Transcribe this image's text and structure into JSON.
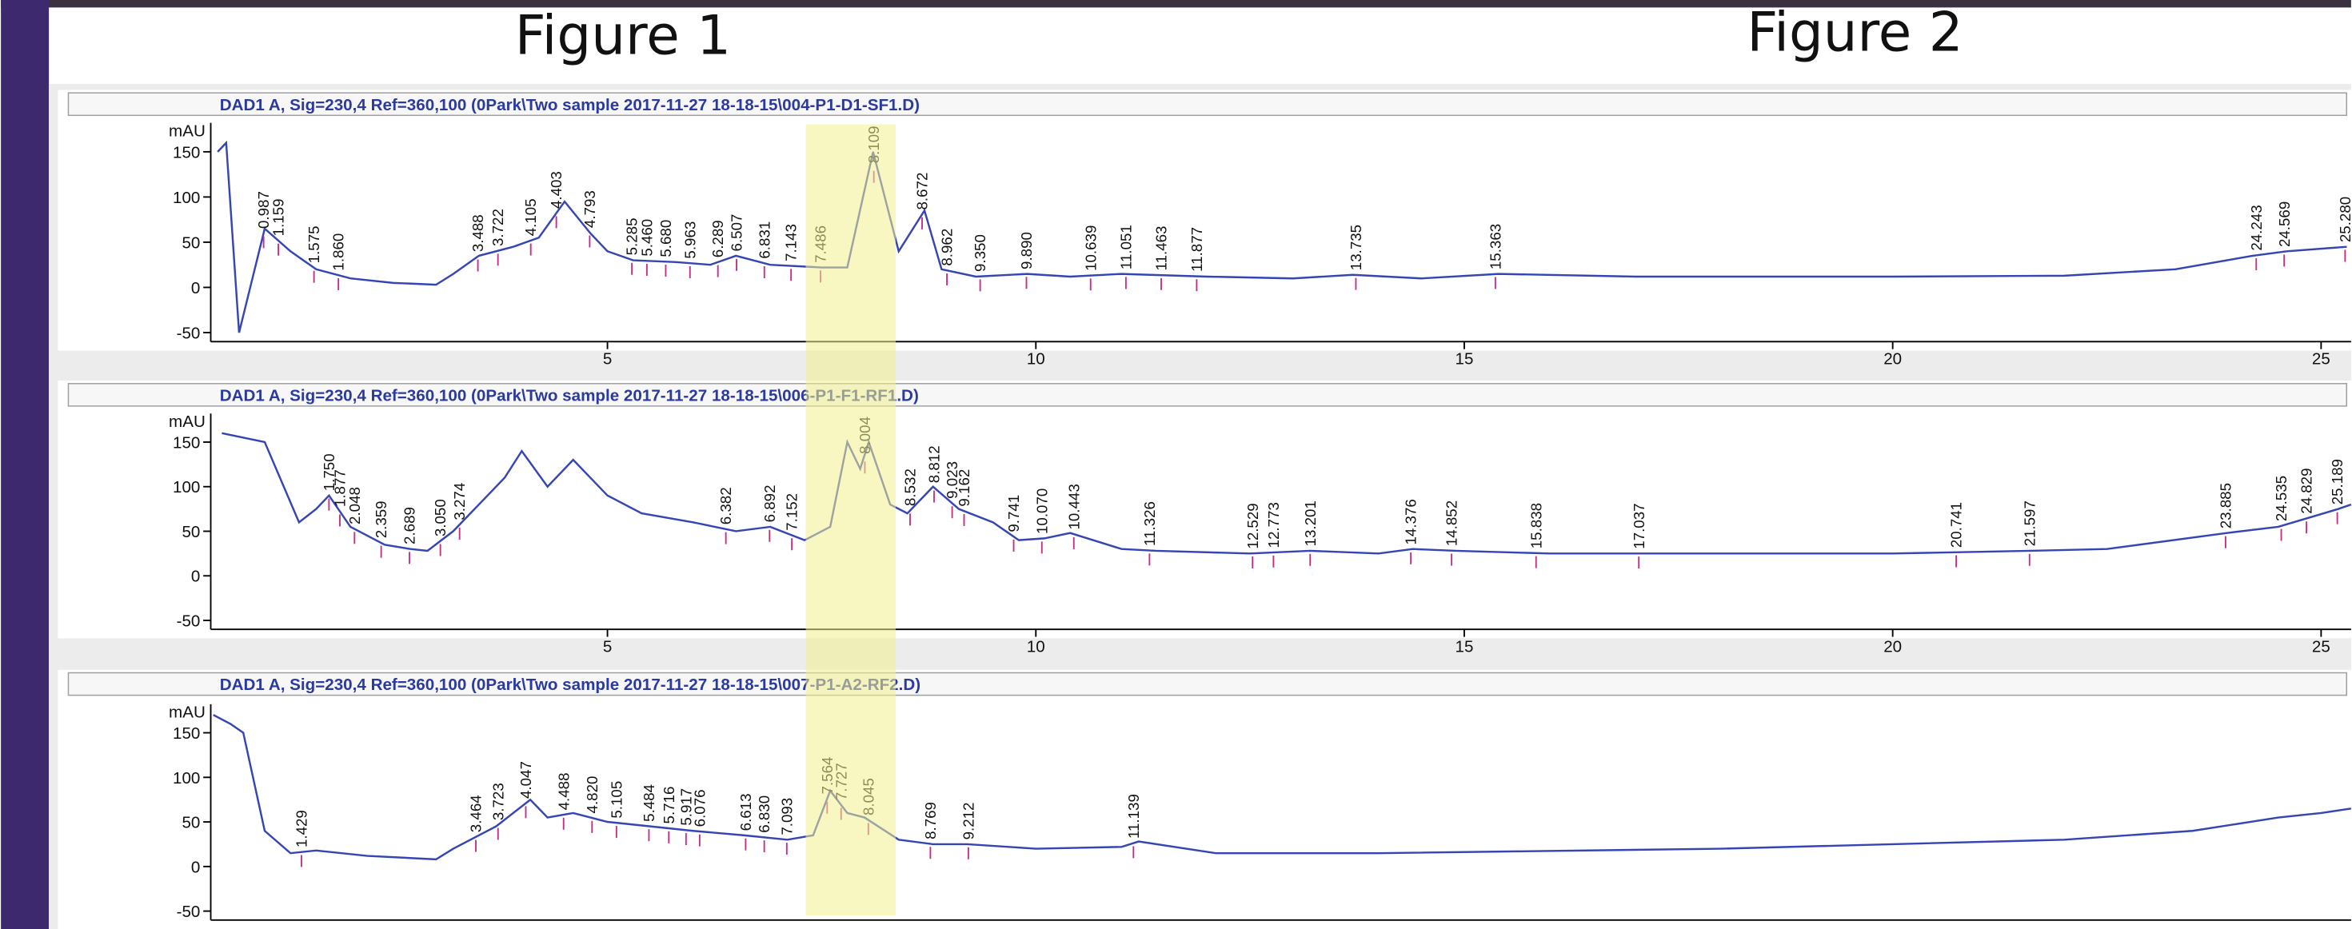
{
  "headings": [
    "Figure 1",
    "Figure 2"
  ],
  "chart_data": [
    {
      "type": "line",
      "title": "DAD1 A, Sig=230,4 Ref=360,100 (0Park\\Two sample 2017-11-27 18-18-15\\004-P1-D1-SF1.D)",
      "y_label": "mAU",
      "color": "#3546b4",
      "xlim": [
        0.37,
        25.35
      ],
      "ylim": [
        -60,
        182
      ],
      "xticks": [
        5,
        10,
        15,
        20,
        25
      ],
      "yticks": [
        -50,
        0,
        50,
        100,
        150
      ],
      "x": [
        0.45,
        0.55,
        0.7,
        1.0,
        1.3,
        1.6,
        2.0,
        2.5,
        3.0,
        3.2,
        3.5,
        3.9,
        4.2,
        4.5,
        4.8,
        5.0,
        5.3,
        5.8,
        6.2,
        6.5,
        6.9,
        7.5,
        7.8,
        8.1,
        8.4,
        8.7,
        8.9,
        9.3,
        9.9,
        10.4,
        11.0,
        12.0,
        13.0,
        13.7,
        14.5,
        15.4,
        17.0,
        20.0,
        22.0,
        23.3,
        24.2,
        24.6,
        25.3
      ],
      "values": [
        150,
        160,
        -50,
        65,
        40,
        20,
        10,
        5,
        3,
        15,
        35,
        45,
        55,
        95,
        60,
        40,
        30,
        28,
        25,
        35,
        25,
        22,
        22,
        150,
        40,
        85,
        20,
        12,
        15,
        12,
        15,
        12,
        10,
        14,
        10,
        15,
        12,
        12,
        13,
        20,
        35,
        40,
        45
      ],
      "annotations": [
        {
          "x": 0.987,
          "label": "0.987"
        },
        {
          "x": 1.159,
          "label": "1.159"
        },
        {
          "x": 1.575,
          "label": "1.575"
        },
        {
          "x": 1.86,
          "label": "1.860"
        },
        {
          "x": 3.488,
          "label": "3.488"
        },
        {
          "x": 3.722,
          "label": "3.722"
        },
        {
          "x": 4.105,
          "label": "4.105"
        },
        {
          "x": 4.403,
          "label": "4.403"
        },
        {
          "x": 4.793,
          "label": "4.793"
        },
        {
          "x": 5.285,
          "label": "5.285"
        },
        {
          "x": 5.46,
          "label": "5.460"
        },
        {
          "x": 5.68,
          "label": "5.680"
        },
        {
          "x": 5.963,
          "label": "5.963"
        },
        {
          "x": 6.289,
          "label": "6.289"
        },
        {
          "x": 6.507,
          "label": "6.507"
        },
        {
          "x": 6.831,
          "label": "6.831"
        },
        {
          "x": 7.143,
          "label": "7.143"
        },
        {
          "x": 7.486,
          "label": "7.486"
        },
        {
          "x": 8.109,
          "label": "8.109"
        },
        {
          "x": 8.672,
          "label": "8.672"
        },
        {
          "x": 8.962,
          "label": "8.962"
        },
        {
          "x": 9.35,
          "label": "9.350"
        },
        {
          "x": 9.89,
          "label": "9.890"
        },
        {
          "x": 10.639,
          "label": "10.639"
        },
        {
          "x": 11.051,
          "label": "11.051"
        },
        {
          "x": 11.463,
          "label": "11.463"
        },
        {
          "x": 11.877,
          "label": "11.877"
        },
        {
          "x": 13.735,
          "label": "13.735"
        },
        {
          "x": 15.363,
          "label": "15.363"
        },
        {
          "x": 24.243,
          "label": "24.243"
        },
        {
          "x": 24.569,
          "label": "24.569"
        },
        {
          "x": 25.28,
          "label": "25.280"
        }
      ]
    },
    {
      "type": "line",
      "title": "DAD1 A, Sig=230,4 Ref=360,100 (0Park\\Two sample 2017-11-27 18-18-15\\006-P1-F1-RF1.D)",
      "y_label": "mAU",
      "color": "#3546b4",
      "xlim": [
        0.37,
        25.35
      ],
      "ylim": [
        -60,
        182
      ],
      "xticks": [
        5,
        10,
        15,
        20,
        25
      ],
      "yticks": [
        -50,
        0,
        50,
        100,
        150
      ],
      "x": [
        0.5,
        1.0,
        1.4,
        1.6,
        1.75,
        2.0,
        2.4,
        2.7,
        2.9,
        3.2,
        3.5,
        3.8,
        4.0,
        4.3,
        4.6,
        5.0,
        5.4,
        6.0,
        6.5,
        6.9,
        7.3,
        7.6,
        7.8,
        7.95,
        8.05,
        8.3,
        8.5,
        8.8,
        9.1,
        9.5,
        9.8,
        10.1,
        10.4,
        11.0,
        11.4,
        12.5,
        13.2,
        14.0,
        14.4,
        14.9,
        16.0,
        17.0,
        20.0,
        21.6,
        22.5,
        23.9,
        24.5,
        25.2,
        25.35
      ],
      "values": [
        160,
        150,
        60,
        75,
        90,
        55,
        35,
        30,
        28,
        50,
        80,
        110,
        140,
        100,
        130,
        90,
        70,
        60,
        50,
        55,
        40,
        55,
        150,
        120,
        150,
        80,
        70,
        100,
        75,
        60,
        40,
        42,
        48,
        30,
        28,
        25,
        28,
        25,
        30,
        28,
        25,
        25,
        25,
        28,
        30,
        48,
        55,
        75,
        80
      ],
      "annotations": [
        {
          "x": 1.75,
          "label": "1.750"
        },
        {
          "x": 1.877,
          "label": "1.877"
        },
        {
          "x": 2.048,
          "label": "2.048"
        },
        {
          "x": 2.359,
          "label": "2.359"
        },
        {
          "x": 2.689,
          "label": "2.689"
        },
        {
          "x": 3.05,
          "label": "3.050"
        },
        {
          "x": 3.274,
          "label": "3.274"
        },
        {
          "x": 6.382,
          "label": "6.382"
        },
        {
          "x": 6.892,
          "label": "6.892"
        },
        {
          "x": 7.152,
          "label": "7.152"
        },
        {
          "x": 8.004,
          "label": "8.004"
        },
        {
          "x": 8.532,
          "label": "8.532"
        },
        {
          "x": 8.812,
          "label": "8.812"
        },
        {
          "x": 9.023,
          "label": "9.023"
        },
        {
          "x": 9.162,
          "label": "9.162"
        },
        {
          "x": 9.741,
          "label": "9.741"
        },
        {
          "x": 10.07,
          "label": "10.070"
        },
        {
          "x": 10.443,
          "label": "10.443"
        },
        {
          "x": 11.326,
          "label": "11.326"
        },
        {
          "x": 12.529,
          "label": "12.529"
        },
        {
          "x": 12.773,
          "label": "12.773"
        },
        {
          "x": 13.201,
          "label": "13.201"
        },
        {
          "x": 14.376,
          "label": "14.376"
        },
        {
          "x": 14.852,
          "label": "14.852"
        },
        {
          "x": 15.838,
          "label": "15.838"
        },
        {
          "x": 17.037,
          "label": "17.037"
        },
        {
          "x": 20.741,
          "label": "20.741"
        },
        {
          "x": 21.597,
          "label": "21.597"
        },
        {
          "x": 23.885,
          "label": "23.885"
        },
        {
          "x": 24.535,
          "label": "24.535"
        },
        {
          "x": 24.829,
          "label": "24.829"
        },
        {
          "x": 25.189,
          "label": "25.189"
        }
      ]
    },
    {
      "type": "line",
      "title": "DAD1 A, Sig=230,4 Ref=360,100 (0Park\\Two sample 2017-11-27 18-18-15\\007-P1-A2-RF2.D)",
      "y_label": "mAU",
      "color": "#3546b4",
      "xlim": [
        0.37,
        25.35
      ],
      "ylim": [
        -60,
        182
      ],
      "yticks": [
        -50,
        0,
        50,
        100,
        150
      ],
      "x": [
        0.4,
        0.6,
        0.75,
        1.0,
        1.3,
        1.6,
        2.2,
        3.0,
        3.2,
        3.7,
        4.1,
        4.3,
        4.6,
        5.0,
        5.5,
        6.0,
        6.6,
        7.1,
        7.4,
        7.6,
        7.8,
        8.0,
        8.4,
        8.8,
        9.2,
        10.0,
        11.0,
        11.2,
        12.1,
        14.0,
        18.0,
        22.0,
        23.5,
        24.5,
        25.0,
        25.35
      ],
      "values": [
        170,
        160,
        150,
        40,
        15,
        18,
        12,
        8,
        20,
        45,
        75,
        55,
        60,
        50,
        45,
        40,
        35,
        30,
        35,
        85,
        60,
        55,
        30,
        25,
        25,
        20,
        22,
        28,
        15,
        15,
        20,
        30,
        40,
        55,
        60,
        65
      ],
      "annotations": [
        {
          "x": 1.429,
          "label": "1.429"
        },
        {
          "x": 3.464,
          "label": "3.464"
        },
        {
          "x": 3.723,
          "label": "3.723"
        },
        {
          "x": 4.047,
          "label": "4.047"
        },
        {
          "x": 4.488,
          "label": "4.488"
        },
        {
          "x": 4.82,
          "label": "4.820"
        },
        {
          "x": 5.105,
          "label": "5.105"
        },
        {
          "x": 5.484,
          "label": "5.484"
        },
        {
          "x": 5.716,
          "label": "5.716"
        },
        {
          "x": 5.917,
          "label": "5.917"
        },
        {
          "x": 6.076,
          "label": "6.076"
        },
        {
          "x": 6.613,
          "label": "6.613"
        },
        {
          "x": 6.83,
          "label": "6.830"
        },
        {
          "x": 7.093,
          "label": "7.093"
        },
        {
          "x": 7.564,
          "label": "7.564"
        },
        {
          "x": 7.727,
          "label": "7.727"
        },
        {
          "x": 8.045,
          "label": "8.045"
        },
        {
          "x": 8.769,
          "label": "8.769"
        },
        {
          "x": 9.212,
          "label": "9.212"
        },
        {
          "x": 11.139,
          "label": "11.139"
        }
      ]
    }
  ]
}
